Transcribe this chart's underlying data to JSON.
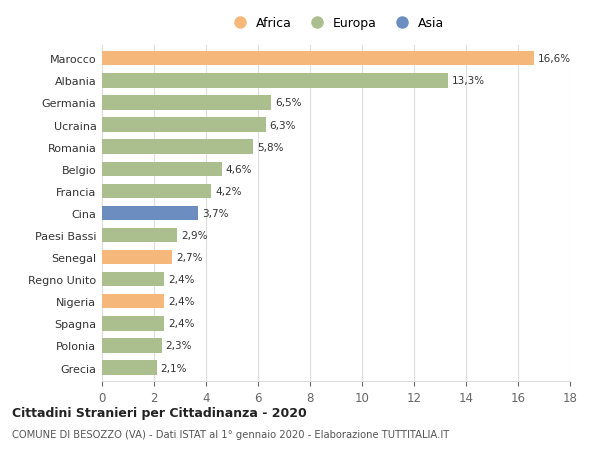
{
  "categories": [
    "Marocco",
    "Albania",
    "Germania",
    "Ucraina",
    "Romania",
    "Belgio",
    "Francia",
    "Cina",
    "Paesi Bassi",
    "Senegal",
    "Regno Unito",
    "Nigeria",
    "Spagna",
    "Polonia",
    "Grecia"
  ],
  "values": [
    16.6,
    13.3,
    6.5,
    6.3,
    5.8,
    4.6,
    4.2,
    3.7,
    2.9,
    2.7,
    2.4,
    2.4,
    2.4,
    2.3,
    2.1
  ],
  "labels": [
    "16,6%",
    "13,3%",
    "6,5%",
    "6,3%",
    "5,8%",
    "4,6%",
    "4,2%",
    "3,7%",
    "2,9%",
    "2,7%",
    "2,4%",
    "2,4%",
    "2,4%",
    "2,3%",
    "2,1%"
  ],
  "continents": [
    "Africa",
    "Europa",
    "Europa",
    "Europa",
    "Europa",
    "Europa",
    "Europa",
    "Asia",
    "Europa",
    "Africa",
    "Europa",
    "Africa",
    "Europa",
    "Europa",
    "Europa"
  ],
  "colors": {
    "Africa": "#F5B87A",
    "Europa": "#ABBE8E",
    "Asia": "#6B8DBF"
  },
  "xlim": [
    0,
    18
  ],
  "xticks": [
    0,
    2,
    4,
    6,
    8,
    10,
    12,
    14,
    16,
    18
  ],
  "title": "Cittadini Stranieri per Cittadinanza - 2020",
  "subtitle": "COMUNE DI BESOZZO (VA) - Dati ISTAT al 1° gennaio 2020 - Elaborazione TUTTITALIA.IT",
  "background_color": "#ffffff",
  "grid_color": "#dddddd",
  "bar_height": 0.65,
  "figsize": [
    6.0,
    4.6
  ],
  "dpi": 100
}
